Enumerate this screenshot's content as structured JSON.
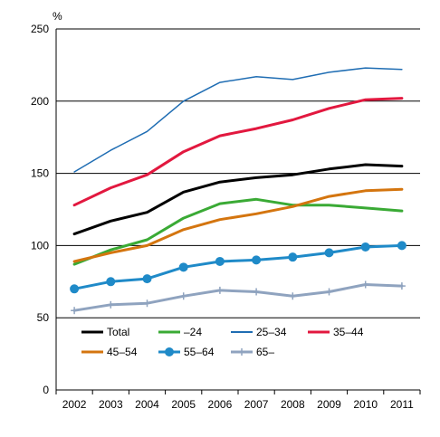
{
  "chart_data": {
    "type": "line",
    "title": "",
    "xlabel": "",
    "ylabel": "%",
    "ylim": [
      0,
      250
    ],
    "yticks": [
      0,
      50,
      100,
      150,
      200,
      250
    ],
    "grid": "horizontal at 50, 100, 150, 200, 250",
    "legend_position": "inside-lower-left",
    "categories": [
      "2002",
      "2003",
      "2004",
      "2005",
      "2006",
      "2007",
      "2008",
      "2009",
      "2010",
      "2011"
    ],
    "series": [
      {
        "name": "Total",
        "color": "#000000",
        "marker": "none",
        "width": 3,
        "values": [
          108,
          117,
          123,
          137,
          144,
          147,
          149,
          153,
          156,
          155
        ]
      },
      {
        "name": "–24",
        "color": "#3aaa35",
        "marker": "none",
        "width": 3,
        "values": [
          87,
          97,
          104,
          119,
          129,
          132,
          128,
          128,
          126,
          124
        ]
      },
      {
        "name": "25–34",
        "color": "#1f6db3",
        "marker": "none",
        "width": 1.5,
        "values": [
          151,
          166,
          179,
          200,
          213,
          217,
          215,
          220,
          223,
          222
        ]
      },
      {
        "name": "35–44",
        "color": "#e2183f",
        "marker": "none",
        "width": 3,
        "values": [
          128,
          140,
          149,
          165,
          176,
          181,
          187,
          195,
          201,
          202
        ]
      },
      {
        "name": "45–54",
        "color": "#d4750f",
        "marker": "none",
        "width": 3,
        "values": [
          89,
          95,
          100,
          111,
          118,
          122,
          127,
          134,
          138,
          139
        ]
      },
      {
        "name": "55–64",
        "color": "#1f8ac8",
        "marker": "circle",
        "width": 3,
        "values": [
          70,
          75,
          77,
          85,
          89,
          90,
          92,
          95,
          99,
          100
        ]
      },
      {
        "name": "65–",
        "color": "#8fa3bf",
        "marker": "plus",
        "width": 3,
        "values": [
          55,
          59,
          60,
          65,
          69,
          68,
          65,
          68,
          73,
          72
        ]
      }
    ]
  }
}
